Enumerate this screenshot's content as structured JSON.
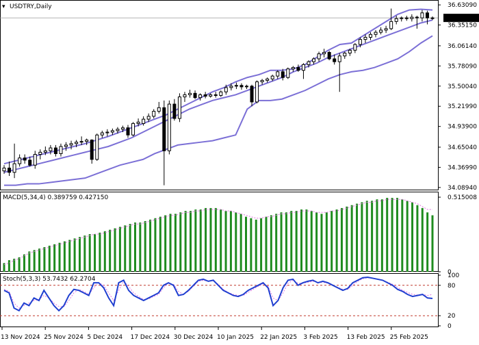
{
  "chart_data": [
    {
      "type": "candlestick",
      "title": "USDTRY,Daily",
      "ylim": [
        34.05,
        36.68
      ],
      "y_ticks": [
        "36.63090",
        "36.35150",
        "36.06140",
        "35.78090",
        "35.50040",
        "35.21990",
        "34.93900",
        "34.65040",
        "34.36990",
        "34.08940"
      ],
      "y_tick_values": [
        36.6309,
        36.3515,
        36.0614,
        35.7809,
        35.5004,
        35.2199,
        34.939,
        34.6504,
        34.3699,
        34.0894
      ],
      "current_price_label": "36.44998",
      "current_price": 36.44998,
      "ohlc": [
        [
          34.32,
          34.4,
          34.28,
          34.36
        ],
        [
          34.36,
          34.45,
          34.25,
          34.3
        ],
        [
          34.3,
          34.7,
          34.22,
          34.42
        ],
        [
          34.42,
          34.55,
          34.38,
          34.5
        ],
        [
          34.5,
          34.55,
          34.42,
          34.47
        ],
        [
          34.47,
          34.52,
          34.38,
          34.4
        ],
        [
          34.4,
          34.6,
          34.35,
          34.55
        ],
        [
          34.55,
          34.62,
          34.48,
          34.58
        ],
        [
          34.58,
          34.66,
          34.54,
          34.6
        ],
        [
          34.6,
          34.68,
          34.55,
          34.64
        ],
        [
          34.64,
          34.68,
          34.52,
          34.56
        ],
        [
          34.56,
          34.7,
          34.52,
          34.66
        ],
        [
          34.66,
          34.72,
          34.6,
          34.68
        ],
        [
          34.68,
          34.74,
          34.62,
          34.7
        ],
        [
          34.7,
          34.75,
          34.65,
          34.72
        ],
        [
          34.72,
          34.8,
          34.68,
          34.73
        ],
        [
          34.73,
          34.77,
          34.68,
          34.75
        ],
        [
          34.75,
          34.76,
          34.42,
          34.48
        ],
        [
          34.48,
          34.84,
          34.46,
          34.82
        ],
        [
          34.82,
          34.88,
          34.78,
          34.85
        ],
        [
          34.85,
          34.9,
          34.8,
          34.86
        ],
        [
          34.86,
          34.91,
          34.82,
          34.88
        ],
        [
          34.88,
          34.93,
          34.84,
          34.9
        ],
        [
          34.9,
          34.95,
          34.86,
          34.92
        ],
        [
          34.92,
          34.96,
          34.78,
          34.82
        ],
        [
          34.82,
          35.0,
          34.8,
          34.98
        ],
        [
          34.98,
          35.05,
          34.94,
          35.0
        ],
        [
          34.98,
          35.08,
          34.95,
          35.04
        ],
        [
          35.04,
          35.12,
          35.0,
          35.08
        ],
        [
          35.08,
          35.18,
          35.05,
          35.15
        ],
        [
          35.15,
          35.28,
          35.12,
          35.2
        ],
        [
          35.2,
          35.3,
          34.12,
          34.6
        ],
        [
          34.6,
          35.3,
          34.55,
          35.25
        ],
        [
          35.25,
          35.32,
          35.02,
          35.05
        ],
        [
          35.05,
          35.4,
          35.0,
          35.35
        ],
        [
          35.35,
          35.42,
          35.28,
          35.38
        ],
        [
          35.38,
          35.45,
          35.34,
          35.4
        ],
        [
          35.4,
          35.44,
          35.32,
          35.34
        ],
        [
          35.34,
          35.4,
          35.3,
          35.38
        ],
        [
          35.38,
          35.42,
          35.33,
          35.36
        ],
        [
          35.36,
          35.4,
          35.34,
          35.38
        ],
        [
          35.38,
          35.42,
          35.34,
          35.37
        ],
        [
          35.37,
          35.44,
          35.35,
          35.42
        ],
        [
          35.42,
          35.52,
          35.38,
          35.48
        ],
        [
          35.48,
          35.54,
          35.44,
          35.5
        ],
        [
          35.5,
          35.55,
          35.46,
          35.51
        ],
        [
          35.51,
          35.54,
          35.45,
          35.49
        ],
        [
          35.49,
          35.52,
          35.46,
          35.5
        ],
        [
          35.5,
          35.52,
          35.22,
          35.28
        ],
        [
          35.28,
          35.58,
          35.26,
          35.56
        ],
        [
          35.56,
          35.6,
          35.52,
          35.58
        ],
        [
          35.58,
          35.62,
          35.55,
          35.6
        ],
        [
          35.6,
          35.66,
          35.57,
          35.64
        ],
        [
          35.64,
          35.72,
          35.6,
          35.7
        ],
        [
          35.7,
          35.74,
          35.58,
          35.62
        ],
        [
          35.62,
          35.76,
          35.6,
          35.74
        ],
        [
          35.74,
          35.78,
          35.7,
          35.76
        ],
        [
          35.76,
          35.8,
          35.7,
          35.72
        ],
        [
          35.72,
          35.82,
          35.6,
          35.8
        ],
        [
          35.8,
          35.86,
          35.76,
          35.84
        ],
        [
          35.84,
          35.9,
          35.8,
          35.88
        ],
        [
          35.88,
          35.98,
          35.84,
          35.95
        ],
        [
          35.95,
          36.02,
          35.9,
          35.97
        ],
        [
          35.97,
          35.99,
          35.86,
          35.88
        ],
        [
          35.88,
          35.94,
          35.8,
          35.84
        ],
        [
          35.84,
          35.96,
          35.42,
          35.92
        ],
        [
          35.92,
          35.98,
          35.88,
          35.96
        ],
        [
          35.96,
          36.02,
          35.92,
          36.0
        ],
        [
          36.0,
          36.1,
          35.96,
          36.08
        ],
        [
          36.08,
          36.18,
          36.04,
          36.15
        ],
        [
          36.15,
          36.22,
          36.1,
          36.18
        ],
        [
          36.18,
          36.25,
          36.14,
          36.22
        ],
        [
          36.22,
          36.28,
          36.18,
          36.25
        ],
        [
          36.25,
          36.32,
          36.22,
          36.28
        ],
        [
          36.28,
          36.34,
          36.24,
          36.3
        ],
        [
          36.3,
          36.58,
          36.28,
          36.4
        ],
        [
          36.4,
          36.48,
          36.36,
          36.44
        ],
        [
          36.44,
          36.47,
          36.4,
          36.45
        ],
        [
          36.45,
          36.48,
          36.41,
          36.44
        ],
        [
          36.44,
          36.5,
          36.4,
          36.46
        ],
        [
          36.46,
          36.48,
          36.3,
          36.45
        ],
        [
          36.45,
          36.56,
          36.4,
          36.52
        ],
        [
          36.52,
          36.55,
          36.36,
          36.45
        ],
        [
          36.45,
          36.47,
          36.42,
          36.44
        ]
      ],
      "envelope_upper": [
        34.42,
        34.46,
        34.5,
        34.54,
        34.58,
        34.62,
        34.66,
        34.7,
        34.75,
        34.8,
        34.86,
        34.92,
        34.98,
        35.04,
        35.1,
        35.18,
        35.26,
        35.34,
        35.42,
        35.48,
        35.56,
        35.62,
        35.66,
        35.72,
        35.72,
        35.74,
        35.8,
        35.9,
        36.0,
        36.08,
        36.1,
        36.2,
        36.3,
        36.4,
        36.5,
        36.56,
        36.57,
        36.56
      ],
      "envelope_middle": [
        34.3,
        34.34,
        34.38,
        34.42,
        34.46,
        34.5,
        34.54,
        34.58,
        34.62,
        34.66,
        34.72,
        34.78,
        34.86,
        34.94,
        35.02,
        35.1,
        35.18,
        35.24,
        35.3,
        35.34,
        35.38,
        35.44,
        35.5,
        35.56,
        35.62,
        35.7,
        35.76,
        35.82,
        35.9,
        35.96,
        36.02,
        36.08,
        36.14,
        36.2,
        36.26,
        36.32,
        36.38,
        36.42
      ],
      "envelope_lower": [
        34.12,
        34.12,
        34.14,
        34.14,
        34.16,
        34.18,
        34.2,
        34.22,
        34.28,
        34.34,
        34.4,
        34.44,
        34.48,
        34.56,
        34.62,
        34.68,
        34.7,
        34.72,
        34.74,
        34.78,
        34.82,
        35.18,
        35.3,
        35.3,
        35.32,
        35.38,
        35.44,
        35.52,
        35.6,
        35.66,
        35.7,
        35.72,
        35.76,
        35.82,
        35.88,
        35.98,
        36.1,
        36.2
      ],
      "envelope_period_px": 18
    },
    {
      "type": "bar",
      "title": "MACD(5,34,4) 0.389759 0.427150",
      "ylim": [
        0,
        0.52
      ],
      "y_ticks": [
        "0.515008",
        "0"
      ],
      "y_tick_values": [
        0.515008,
        0
      ],
      "histogram": [
        0.06,
        0.08,
        0.09,
        0.1,
        0.12,
        0.14,
        0.15,
        0.16,
        0.17,
        0.18,
        0.19,
        0.2,
        0.21,
        0.22,
        0.23,
        0.24,
        0.25,
        0.26,
        0.26,
        0.27,
        0.28,
        0.29,
        0.3,
        0.31,
        0.32,
        0.33,
        0.34,
        0.34,
        0.35,
        0.36,
        0.37,
        0.38,
        0.39,
        0.4,
        0.4,
        0.41,
        0.42,
        0.42,
        0.43,
        0.43,
        0.44,
        0.44,
        0.44,
        0.43,
        0.42,
        0.42,
        0.41,
        0.4,
        0.38,
        0.37,
        0.36,
        0.37,
        0.38,
        0.39,
        0.4,
        0.41,
        0.41,
        0.42,
        0.42,
        0.43,
        0.43,
        0.42,
        0.41,
        0.4,
        0.41,
        0.42,
        0.43,
        0.44,
        0.45,
        0.46,
        0.47,
        0.48,
        0.49,
        0.49,
        0.5,
        0.5,
        0.51,
        0.51,
        0.51,
        0.5,
        0.49,
        0.48,
        0.46,
        0.44,
        0.41,
        0.39
      ],
      "signal": [
        0.05,
        0.06,
        0.08,
        0.09,
        0.11,
        0.13,
        0.14,
        0.15,
        0.16,
        0.17,
        0.18,
        0.19,
        0.2,
        0.21,
        0.22,
        0.23,
        0.24,
        0.25,
        0.26,
        0.26,
        0.27,
        0.28,
        0.29,
        0.3,
        0.31,
        0.32,
        0.33,
        0.33,
        0.34,
        0.35,
        0.36,
        0.37,
        0.38,
        0.39,
        0.39,
        0.4,
        0.41,
        0.41,
        0.42,
        0.42,
        0.43,
        0.43,
        0.43,
        0.43,
        0.42,
        0.42,
        0.41,
        0.4,
        0.39,
        0.38,
        0.37,
        0.37,
        0.38,
        0.38,
        0.39,
        0.4,
        0.4,
        0.41,
        0.41,
        0.42,
        0.42,
        0.42,
        0.41,
        0.41,
        0.41,
        0.42,
        0.42,
        0.43,
        0.44,
        0.45,
        0.46,
        0.47,
        0.48,
        0.48,
        0.49,
        0.49,
        0.5,
        0.5,
        0.5,
        0.5,
        0.49,
        0.48,
        0.47,
        0.45,
        0.43,
        0.43
      ]
    },
    {
      "type": "line",
      "title": "Stoch(5,3,3) 53.7432 62.2704",
      "ylim": [
        0,
        100
      ],
      "y_ticks": [
        "100",
        "80",
        "20",
        "0"
      ],
      "y_tick_values": [
        100,
        80,
        20,
        0
      ],
      "levels": [
        80,
        20
      ],
      "main": [
        70,
        65,
        35,
        30,
        45,
        40,
        55,
        50,
        70,
        55,
        40,
        30,
        40,
        60,
        72,
        70,
        65,
        60,
        85,
        85,
        75,
        55,
        40,
        85,
        90,
        70,
        60,
        55,
        50,
        55,
        60,
        65,
        80,
        85,
        80,
        60,
        62,
        70,
        80,
        90,
        92,
        88,
        90,
        80,
        70,
        65,
        60,
        58,
        62,
        70,
        75,
        80,
        85,
        75,
        40,
        50,
        75,
        90,
        92,
        80,
        85,
        88,
        90,
        85,
        88,
        85,
        80,
        75,
        70,
        74,
        85,
        90,
        95,
        96,
        94,
        92,
        90,
        85,
        80,
        72,
        68,
        62,
        58,
        60,
        62,
        55,
        54
      ],
      "signal": [
        72,
        68,
        45,
        35,
        40,
        45,
        50,
        52,
        60,
        55,
        45,
        38,
        38,
        50,
        65,
        72,
        68,
        62,
        75,
        85,
        80,
        65,
        50,
        70,
        88,
        78,
        65,
        58,
        52,
        53,
        58,
        62,
        75,
        84,
        82,
        68,
        62,
        68,
        78,
        88,
        90,
        88,
        89,
        82,
        72,
        66,
        62,
        60,
        60,
        66,
        72,
        78,
        83,
        78,
        55,
        50,
        65,
        84,
        90,
        84,
        84,
        86,
        88,
        86,
        86,
        84,
        80,
        76,
        72,
        72,
        80,
        88,
        93,
        95,
        94,
        92,
        90,
        86,
        82,
        76,
        70,
        66,
        62,
        61,
        62,
        60,
        62
      ]
    },
    {
      "type": "axis",
      "x_tick_labels": [
        "13 Nov 2024",
        "25 Nov 2024",
        "5 Dec 2024",
        "17 Dec 2024",
        "30 Dec 2024",
        "10 Jan 2025",
        "22 Jan 2025",
        "3 Feb 2025",
        "13 Feb 2025",
        "25 Feb 2025"
      ]
    }
  ],
  "colors": {
    "bull_body": "#ffffff",
    "bear_body": "#000000",
    "envelope": "#7b6fd6",
    "macd_hist": "#1e8b1e",
    "macd_signal": "#e070e0",
    "stoch_main": "#1f3fd0",
    "stoch_signal": "#e070e0",
    "level_line": "#c0392b",
    "price_line": "#999999"
  }
}
